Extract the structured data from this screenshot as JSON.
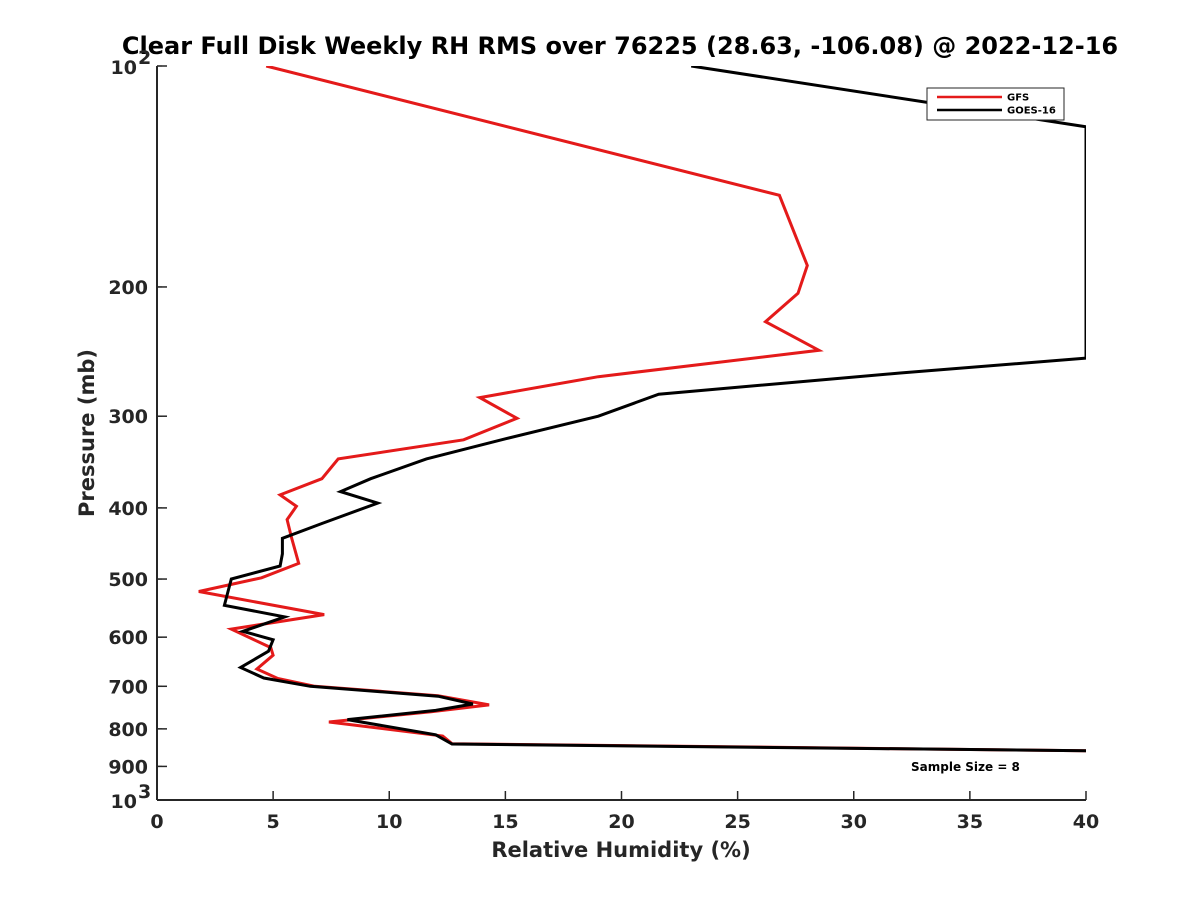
{
  "chart_data": {
    "type": "line",
    "title": "Clear Full Disk Weekly RH RMS over 76225 (28.63, -106.08) @ 2022-12-16",
    "xlabel": "Relative Humidity (%)",
    "ylabel": "Pressure (mb)",
    "xlim": [
      0,
      40
    ],
    "ylim": [
      100,
      1000
    ],
    "yscale": "log",
    "y_reversed": true,
    "grid": false,
    "legend_position": "top-right",
    "x_ticks": [
      "0",
      "5",
      "10",
      "15",
      "20",
      "25",
      "30",
      "35",
      "40"
    ],
    "y_ticks": [
      {
        "value": 100,
        "base": "10",
        "exp": "2"
      },
      {
        "value": 200,
        "label": "200"
      },
      {
        "value": 300,
        "label": "300"
      },
      {
        "value": 400,
        "label": "400"
      },
      {
        "value": 500,
        "label": "500"
      },
      {
        "value": 600,
        "label": "600"
      },
      {
        "value": 700,
        "label": "700"
      },
      {
        "value": 800,
        "label": "800"
      },
      {
        "value": 900,
        "label": "900"
      },
      {
        "value": 1000,
        "base": "10",
        "exp": "3"
      }
    ],
    "annotation": "Sample Size = 8",
    "series": [
      {
        "name": "GFS",
        "color": "#e41a1a",
        "points": [
          [
            4.7,
            100
          ],
          [
            26.8,
            150
          ],
          [
            28.0,
            187
          ],
          [
            27.6,
            204
          ],
          [
            26.2,
            223
          ],
          [
            28.5,
            244
          ],
          [
            19.0,
            265
          ],
          [
            13.9,
            283
          ],
          [
            15.5,
            302
          ],
          [
            13.2,
            323
          ],
          [
            7.8,
            343
          ],
          [
            7.1,
            365
          ],
          [
            5.3,
            384
          ],
          [
            6.0,
            398
          ],
          [
            5.6,
            415
          ],
          [
            5.8,
            440
          ],
          [
            6.1,
            476
          ],
          [
            4.5,
            498
          ],
          [
            1.8,
            520
          ],
          [
            7.2,
            559
          ],
          [
            3.2,
            585
          ],
          [
            4.9,
            620
          ],
          [
            5.0,
            635
          ],
          [
            4.3,
            663
          ],
          [
            5.2,
            683
          ],
          [
            6.8,
            700
          ],
          [
            12.1,
            721
          ],
          [
            14.3,
            742
          ],
          [
            11.8,
            758
          ],
          [
            7.4,
            783
          ],
          [
            12.3,
            818
          ],
          [
            12.7,
            838
          ],
          [
            40.0,
            857
          ]
        ]
      },
      {
        "name": "GOES-16",
        "color": "#000000",
        "points": [
          [
            23.0,
            100
          ],
          [
            40.0,
            121
          ],
          [
            40.0,
            250
          ],
          [
            32.0,
            262
          ],
          [
            21.6,
            280
          ],
          [
            19.0,
            300
          ],
          [
            15.0,
            322
          ],
          [
            11.6,
            343
          ],
          [
            9.2,
            365
          ],
          [
            7.9,
            380
          ],
          [
            9.5,
            394
          ],
          [
            7.1,
            420
          ],
          [
            5.4,
            440
          ],
          [
            5.4,
            462
          ],
          [
            5.3,
            480
          ],
          [
            3.2,
            500
          ],
          [
            2.9,
            543
          ],
          [
            5.5,
            563
          ],
          [
            3.7,
            589
          ],
          [
            5.0,
            605
          ],
          [
            4.8,
            627
          ],
          [
            3.6,
            660
          ],
          [
            4.6,
            682
          ],
          [
            6.6,
            700
          ],
          [
            12.1,
            722
          ],
          [
            13.6,
            740
          ],
          [
            12.0,
            755
          ],
          [
            8.2,
            777
          ],
          [
            12.0,
            815
          ],
          [
            12.7,
            839
          ],
          [
            40.0,
            857
          ]
        ]
      }
    ]
  }
}
